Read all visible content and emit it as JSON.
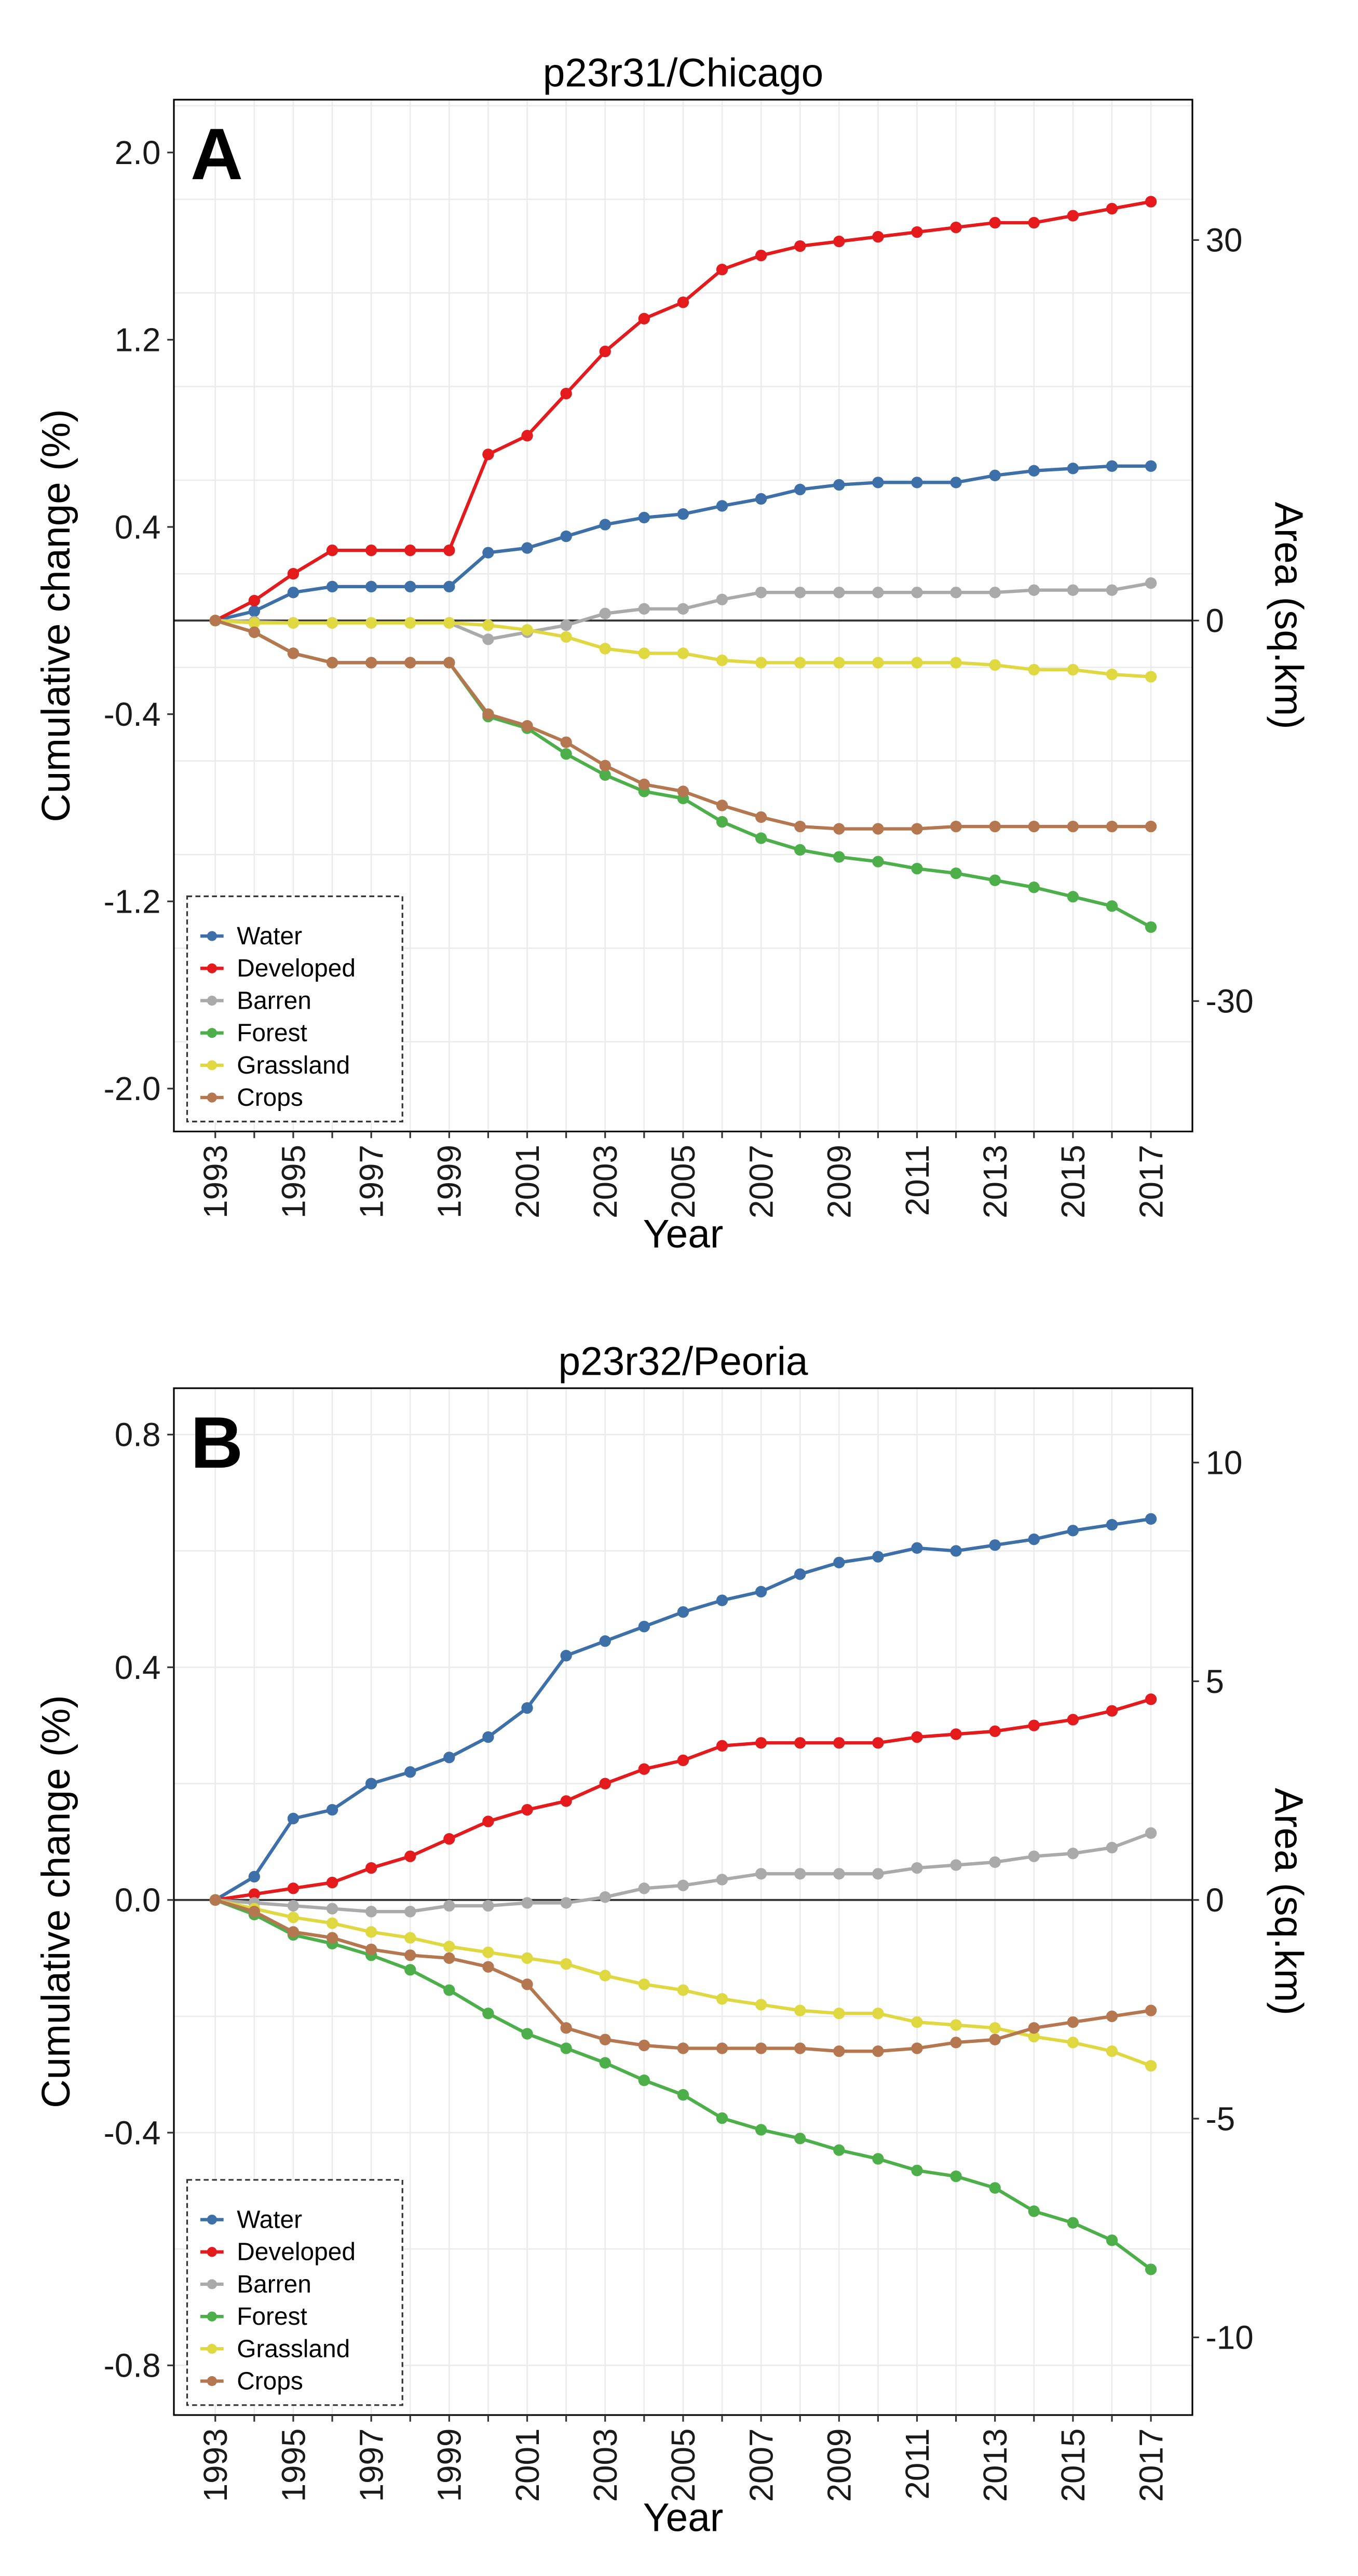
{
  "chart_data": [
    {
      "type": "line",
      "panel_label": "A",
      "title": "p23r31/Chicago",
      "xlabel": "Year",
      "ylabel": "Cumulative change (%)",
      "ylabel_right": "Area (sq.km)",
      "x": [
        1993,
        1994,
        1995,
        1996,
        1997,
        1998,
        1999,
        2000,
        2001,
        2002,
        2003,
        2004,
        2005,
        2006,
        2007,
        2008,
        2009,
        2010,
        2011,
        2012,
        2013,
        2014,
        2015,
        2016,
        2017
      ],
      "xticks": [
        "1993",
        "1995",
        "1997",
        "1999",
        "2001",
        "2003",
        "2005",
        "2007",
        "2009",
        "2011",
        "2013",
        "2015",
        "2017"
      ],
      "ylim": [
        -2.3,
        2.4
      ],
      "yticks": [
        "-2.0",
        "-1.2",
        "-0.4",
        "0.4",
        "1.2",
        "2.0"
      ],
      "yticks_right": [
        "-30",
        "0",
        "30"
      ],
      "right_scale_per_pct": 18.45,
      "legend_position": "bottom-left",
      "series": [
        {
          "name": "Water",
          "color": "#3d6fa8",
          "values": [
            0,
            0.04,
            0.12,
            0.145,
            0.145,
            0.145,
            0.145,
            0.29,
            0.31,
            0.36,
            0.41,
            0.44,
            0.455,
            0.49,
            0.52,
            0.56,
            0.58,
            0.59,
            0.59,
            0.59,
            0.62,
            0.64,
            0.65,
            0.66,
            0.66
          ]
        },
        {
          "name": "Developed",
          "color": "#e41a1c",
          "values": [
            0,
            0.085,
            0.2,
            0.3,
            0.3,
            0.3,
            0.3,
            0.71,
            0.79,
            0.97,
            1.15,
            1.29,
            1.36,
            1.5,
            1.56,
            1.6,
            1.62,
            1.64,
            1.66,
            1.68,
            1.7,
            1.7,
            1.73,
            1.76,
            1.79
          ]
        },
        {
          "name": "Barren",
          "color": "#aaaaaa",
          "values": [
            0,
            -0.005,
            -0.01,
            -0.01,
            -0.01,
            -0.01,
            -0.01,
            -0.08,
            -0.05,
            -0.02,
            0.03,
            0.05,
            0.05,
            0.09,
            0.12,
            0.12,
            0.12,
            0.12,
            0.12,
            0.12,
            0.12,
            0.13,
            0.13,
            0.13,
            0.16
          ]
        },
        {
          "name": "Forest",
          "color": "#4daf4a",
          "values": [
            0,
            -0.05,
            -0.14,
            -0.18,
            -0.18,
            -0.18,
            -0.18,
            -0.41,
            -0.46,
            -0.57,
            -0.66,
            -0.73,
            -0.76,
            -0.86,
            -0.93,
            -0.98,
            -1.01,
            -1.03,
            -1.06,
            -1.08,
            -1.11,
            -1.14,
            -1.18,
            -1.22,
            -1.31
          ]
        },
        {
          "name": "Grassland",
          "color": "#e0d840",
          "values": [
            0,
            -0.01,
            -0.01,
            -0.01,
            -0.01,
            -0.01,
            -0.01,
            -0.02,
            -0.04,
            -0.07,
            -0.12,
            -0.14,
            -0.14,
            -0.17,
            -0.18,
            -0.18,
            -0.18,
            -0.18,
            -0.18,
            -0.18,
            -0.19,
            -0.21,
            -0.21,
            -0.23,
            -0.24
          ]
        },
        {
          "name": "Crops",
          "color": "#b5774f",
          "values": [
            0,
            -0.05,
            -0.14,
            -0.18,
            -0.18,
            -0.18,
            -0.18,
            -0.4,
            -0.45,
            -0.52,
            -0.62,
            -0.7,
            -0.73,
            -0.79,
            -0.84,
            -0.88,
            -0.89,
            -0.89,
            -0.89,
            -0.88,
            -0.88,
            -0.88,
            -0.88,
            -0.88,
            -0.88
          ]
        }
      ]
    },
    {
      "type": "line",
      "panel_label": "B",
      "title": "p23r32/Peoria",
      "xlabel": "Year",
      "ylabel": "Cumulative change (%)",
      "ylabel_right": "Area (sq.km)",
      "x": [
        1993,
        1994,
        1995,
        1996,
        1997,
        1998,
        1999,
        2000,
        2001,
        2002,
        2003,
        2004,
        2005,
        2006,
        2007,
        2008,
        2009,
        2010,
        2011,
        2012,
        2013,
        2014,
        2015,
        2016,
        2017
      ],
      "xticks": [
        "1993",
        "1995",
        "1997",
        "1999",
        "2001",
        "2003",
        "2005",
        "2007",
        "2009",
        "2011",
        "2013",
        "2015",
        "2017"
      ],
      "ylim": [
        -0.88,
        0.88
      ],
      "yticks": [
        "-0.8",
        "-0.4",
        "0.0",
        "0.4",
        "0.8"
      ],
      "yticks_right": [
        "-10",
        "-5",
        "0",
        "5",
        "10"
      ],
      "right_scale_per_pct": 13.3,
      "legend_position": "bottom-left",
      "series": [
        {
          "name": "Water",
          "color": "#3d6fa8",
          "values": [
            0,
            0.04,
            0.14,
            0.155,
            0.2,
            0.22,
            0.245,
            0.28,
            0.33,
            0.42,
            0.445,
            0.47,
            0.495,
            0.515,
            0.53,
            0.56,
            0.58,
            0.59,
            0.605,
            0.6,
            0.61,
            0.62,
            0.635,
            0.645,
            0.655
          ]
        },
        {
          "name": "Developed",
          "color": "#e41a1c",
          "values": [
            0,
            0.01,
            0.02,
            0.03,
            0.055,
            0.075,
            0.105,
            0.135,
            0.155,
            0.17,
            0.2,
            0.225,
            0.24,
            0.265,
            0.27,
            0.27,
            0.27,
            0.27,
            0.28,
            0.285,
            0.29,
            0.3,
            0.31,
            0.325,
            0.345
          ]
        },
        {
          "name": "Barren",
          "color": "#aaaaaa",
          "values": [
            0,
            -0.005,
            -0.01,
            -0.015,
            -0.02,
            -0.02,
            -0.01,
            -0.01,
            -0.005,
            -0.005,
            0.005,
            0.02,
            0.025,
            0.035,
            0.045,
            0.045,
            0.045,
            0.045,
            0.055,
            0.06,
            0.065,
            0.075,
            0.08,
            0.09,
            0.115
          ]
        },
        {
          "name": "Forest",
          "color": "#4daf4a",
          "values": [
            0,
            -0.025,
            -0.06,
            -0.075,
            -0.095,
            -0.12,
            -0.155,
            -0.195,
            -0.23,
            -0.255,
            -0.28,
            -0.31,
            -0.335,
            -0.375,
            -0.395,
            -0.41,
            -0.43,
            -0.445,
            -0.465,
            -0.475,
            -0.495,
            -0.535,
            -0.555,
            -0.585,
            -0.635
          ]
        },
        {
          "name": "Grassland",
          "color": "#e0d840",
          "values": [
            0,
            -0.015,
            -0.03,
            -0.04,
            -0.055,
            -0.065,
            -0.08,
            -0.09,
            -0.1,
            -0.11,
            -0.13,
            -0.145,
            -0.155,
            -0.17,
            -0.18,
            -0.19,
            -0.195,
            -0.195,
            -0.21,
            -0.215,
            -0.22,
            -0.235,
            -0.245,
            -0.26,
            -0.285
          ]
        },
        {
          "name": "Crops",
          "color": "#b5774f",
          "values": [
            0,
            -0.02,
            -0.055,
            -0.065,
            -0.085,
            -0.095,
            -0.1,
            -0.115,
            -0.145,
            -0.22,
            -0.24,
            -0.25,
            -0.255,
            -0.255,
            -0.255,
            -0.255,
            -0.26,
            -0.26,
            -0.255,
            -0.245,
            -0.24,
            -0.22,
            -0.21,
            -0.2,
            -0.19
          ]
        }
      ]
    }
  ]
}
